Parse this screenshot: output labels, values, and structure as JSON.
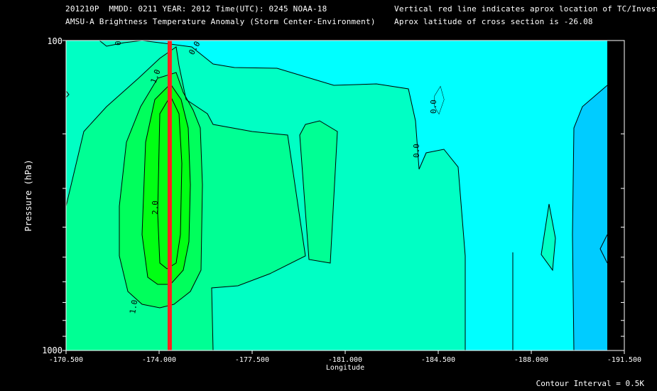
{
  "header": {
    "line1": "201210P  MMDD: 0211 YEAR: 2012 Time(UTC): 0245 NOAA-18",
    "line2": "AMSU-A Brightness Temperature Anomaly (Storm Center-Environment)",
    "right1": "Vertical red line indicates aprox location of TC/Invest",
    "right2": "Aprox latitude of cross section is -26.08"
  },
  "footer": "Contour Interval = 0.5K",
  "colors": {
    "level_0": "#00ffff",
    "level_05": "#00ffc4",
    "level_1": "#00ff94",
    "level_15": "#00ff5c",
    "level_2": "#00ff14",
    "negative": "#00ccff",
    "storm_line": "#ff2020"
  },
  "chart_data": {
    "type": "contour",
    "title": "AMSU-A Brightness Temperature Anomaly (Storm Center-Environment)",
    "xlabel": "Longitude",
    "ylabel": "Pressure (hPa)",
    "x_ticks": [
      "-170.500",
      "-174.000",
      "-177.500",
      "-181.000",
      "-184.500",
      "-188.000",
      "-191.500"
    ],
    "x_range": [
      -170.5,
      -191.5
    ],
    "y_range": [
      1000,
      100
    ],
    "y_scale": "log",
    "y_tick_labels": [
      "100",
      "1000"
    ],
    "contour_interval": 0.5,
    "contour_labels": [
      "0.0",
      "1.0",
      "2.0",
      "1.0",
      "0.0",
      "0.0"
    ],
    "storm_longitude": -174.4,
    "max_anomaly_level": 2.0,
    "levels": [
      0.0,
      0.5,
      1.0,
      1.5,
      2.0
    ]
  }
}
